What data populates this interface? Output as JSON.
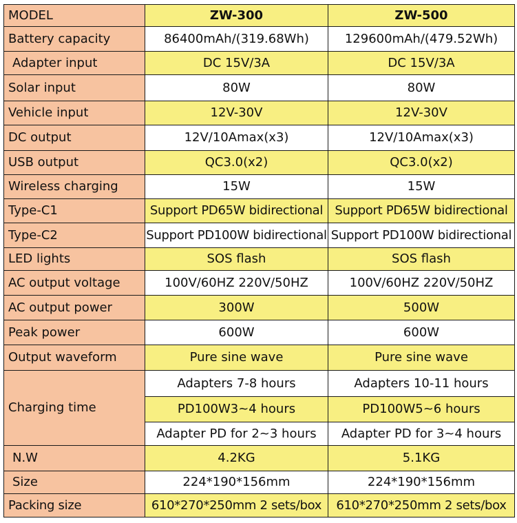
{
  "table": {
    "header": {
      "label": "MODEL",
      "col1": "ZW-300",
      "col2": "ZW-500"
    },
    "rows": [
      {
        "label": "Battery capacity",
        "v1": "86400mAh/(319.68Wh)",
        "v2": "129600mAh/(479.52Wh)"
      },
      {
        "label": "Adapter input",
        "v1": "DC  15V/3A",
        "v2": "DC  15V/3A"
      },
      {
        "label": "Solar input",
        "v1": "80W",
        "v2": "80W"
      },
      {
        "label": "Vehicle input",
        "v1": "12V-30V",
        "v2": "12V-30V"
      },
      {
        "label": "DC output",
        "v1": "12V/10Amax(x3)",
        "v2": "12V/10Amax(x3)"
      },
      {
        "label": "USB output",
        "v1": "QC3.0(x2)",
        "v2": "QC3.0(x2)"
      },
      {
        "label": "Wireless charging",
        "v1": "15W",
        "v2": "15W"
      },
      {
        "label": "Type-C1",
        "v1": "Support PD65W bidirectional",
        "v2": "Support PD65W bidirectional"
      },
      {
        "label": "Type-C2",
        "v1": "Support PD100W bidirectional",
        "v2": "Support PD100W bidirectional"
      },
      {
        "label": "LED lights",
        "v1": "SOS flash",
        "v2": "SOS flash"
      },
      {
        "label": "AC output voltage",
        "v1": "100V/60HZ  220V/50HZ",
        "v2": "100V/60HZ  220V/50HZ"
      },
      {
        "label": "AC output power",
        "v1": "300W",
        "v2": "500W"
      },
      {
        "label": "Peak power",
        "v1": "600W",
        "v2": "600W"
      },
      {
        "label": "Output waveform",
        "v1": "Pure sine wave",
        "v2": "Pure sine wave"
      }
    ],
    "charging": {
      "label": "Charging time",
      "lines": [
        {
          "v1": "Adapters 7-8 hours",
          "v2": "Adapters 10-11 hours"
        },
        {
          "v1": "PD100W3~4 hours",
          "v2": "PD100W5~6 hours"
        },
        {
          "v1": "Adapter PD for 2~3 hours",
          "v2": "Adapter PD for 3~4 hours"
        }
      ]
    },
    "tail": [
      {
        "label": "N.W",
        "v1": "4.2KG",
        "v2": "5.1KG"
      },
      {
        "label": "Size",
        "v1": "224*190*156mm",
        "v2": "224*190*156mm"
      },
      {
        "label": "Packing size",
        "v1": "610*270*250mm  2 sets/box",
        "v2": "610*270*250mm  2 sets/box"
      }
    ]
  }
}
